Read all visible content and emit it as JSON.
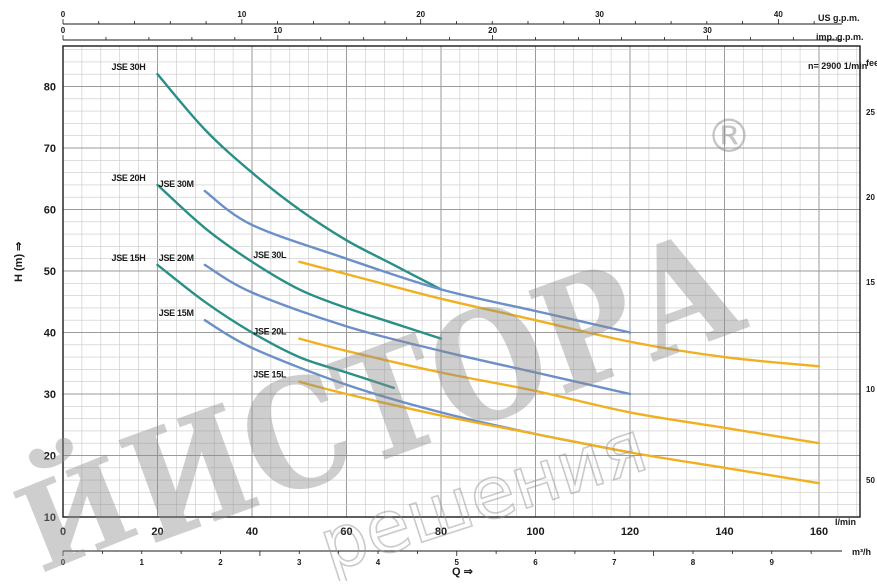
{
  "chart_data": {
    "type": "line",
    "title": "",
    "annotation": "n= 2900 1/min",
    "xlabel": "Q ⇒",
    "ylabel": "H (m) ⇒",
    "x_unit": "l/min",
    "x_unit_m3h": "m³/h",
    "top_units": {
      "us": "US g.p.m.",
      "imp": "imp. g.p.m."
    },
    "right_unit": "feet",
    "xlim": [
      0,
      170
    ],
    "ylim": [
      10,
      88
    ],
    "x_ticks": [
      "0",
      "20",
      "40",
      "60",
      "80",
      "100",
      "120",
      "140",
      "160"
    ],
    "y_ticks": [
      "10",
      "20",
      "30",
      "40",
      "50",
      "60",
      "70",
      "80"
    ],
    "m3h_ticks": [
      "0",
      "1",
      "2",
      "3",
      "4",
      "5",
      "6",
      "7",
      "8",
      "9"
    ],
    "us_gpm_ticks": [
      "0",
      "10",
      "20",
      "30",
      "40"
    ],
    "imp_gpm_ticks": [
      "0",
      "10",
      "20",
      "30"
    ],
    "right_ticks": [
      "25",
      "20",
      "15",
      "10",
      "50"
    ],
    "grid": true,
    "series": [
      {
        "name": "JSE 30H",
        "color": "#2a8f87",
        "x": [
          20,
          30,
          40,
          50,
          60,
          70,
          80
        ],
        "y": [
          82,
          73,
          66,
          60,
          55,
          51,
          47
        ]
      },
      {
        "name": "JSE 20H",
        "color": "#2a8f87",
        "x": [
          20,
          30,
          40,
          50,
          60,
          70,
          80
        ],
        "y": [
          64,
          57,
          51.5,
          47,
          44,
          41.5,
          39
        ]
      },
      {
        "name": "JSE 15H",
        "color": "#2a8f87",
        "x": [
          20,
          30,
          40,
          50,
          60,
          70
        ],
        "y": [
          51,
          45,
          40,
          36,
          33.5,
          31
        ]
      },
      {
        "name": "JSE 30M",
        "color": "#6b8fc8",
        "x": [
          30,
          40,
          60,
          80,
          100,
          120
        ],
        "y": [
          63,
          57.5,
          52,
          47,
          43.5,
          40
        ]
      },
      {
        "name": "JSE 20M",
        "color": "#6b8fc8",
        "x": [
          30,
          40,
          60,
          80,
          100,
          120
        ],
        "y": [
          51,
          46.5,
          41,
          37,
          33.5,
          30
        ]
      },
      {
        "name": "JSE 15M",
        "color": "#6b8fc8",
        "x": [
          30,
          40,
          60,
          80,
          100,
          120
        ],
        "y": [
          42,
          37.5,
          31.5,
          27,
          23.5,
          20.5
        ]
      },
      {
        "name": "JSE 30L",
        "color": "#f0b020",
        "x": [
          50,
          60,
          80,
          100,
          120,
          140,
          160
        ],
        "y": [
          51.5,
          49.5,
          45.5,
          42,
          38.5,
          36,
          34.5
        ]
      },
      {
        "name": "JSE 20L",
        "color": "#f0b020",
        "x": [
          50,
          60,
          80,
          100,
          120,
          140,
          160
        ],
        "y": [
          39,
          37,
          33.5,
          30.5,
          27,
          24.5,
          22
        ]
      },
      {
        "name": "JSE 15L",
        "color": "#f0b020",
        "x": [
          50,
          60,
          80,
          100,
          120,
          140,
          160
        ],
        "y": [
          32,
          30,
          26.5,
          23.5,
          20.5,
          18,
          15.5
        ]
      }
    ]
  },
  "watermark": {
    "main": "ИСТОРА",
    "sub": "решения",
    "reg": "®",
    "lead": "Й"
  }
}
